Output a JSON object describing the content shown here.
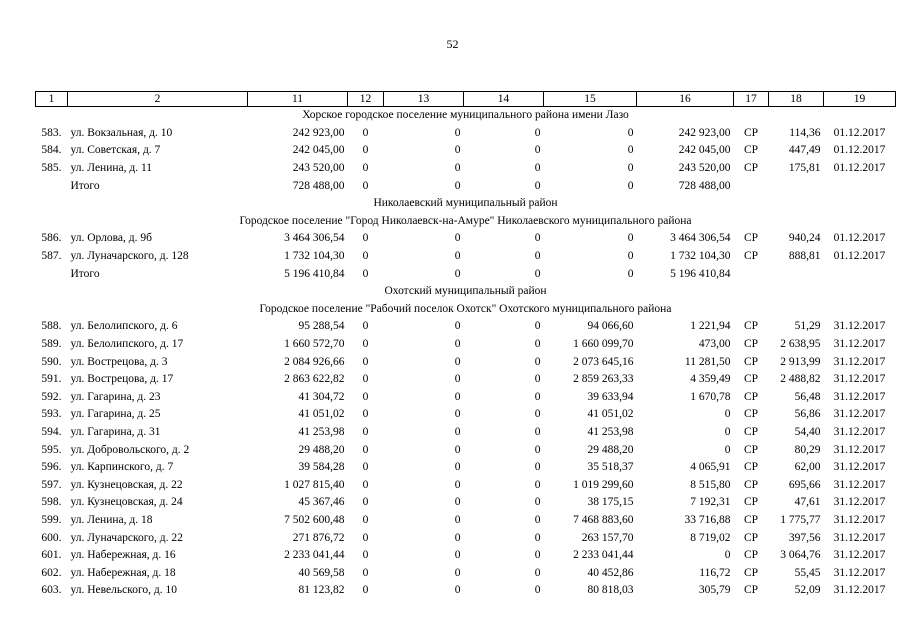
{
  "page_number": "52",
  "header": [
    "1",
    "2",
    "11",
    "12",
    "13",
    "14",
    "15",
    "16",
    "17",
    "18",
    "19"
  ],
  "rows": [
    {
      "kind": "section",
      "text": "Хорское городское поселение муниципального района имени Лазо"
    },
    {
      "kind": "data",
      "cells": [
        "583.",
        "ул. Вокзальная, д. 10",
        "242 923,00",
        "0",
        "0",
        "0",
        "0",
        "242 923,00",
        "СР",
        "114,36",
        "01.12.2017"
      ]
    },
    {
      "kind": "data",
      "cells": [
        "584.",
        "ул. Советская, д. 7",
        "242 045,00",
        "0",
        "0",
        "0",
        "0",
        "242 045,00",
        "СР",
        "447,49",
        "01.12.2017"
      ]
    },
    {
      "kind": "data",
      "cells": [
        "585.",
        "ул. Ленина, д. 11",
        "243 520,00",
        "0",
        "0",
        "0",
        "0",
        "243 520,00",
        "СР",
        "175,81",
        "01.12.2017"
      ]
    },
    {
      "kind": "data",
      "cells": [
        "",
        "Итого",
        "728 488,00",
        "0",
        "0",
        "0",
        "0",
        "728 488,00",
        "",
        "",
        ""
      ]
    },
    {
      "kind": "section",
      "text": "Николаевский муниципальный район"
    },
    {
      "kind": "section",
      "text": "Городское поселение \"Город Николаевск-на-Амуре\" Николаевского муниципального района"
    },
    {
      "kind": "data",
      "cells": [
        "586.",
        "ул. Орлова, д. 9б",
        "3 464 306,54",
        "0",
        "0",
        "0",
        "0",
        "3 464 306,54",
        "СР",
        "940,24",
        "01.12.2017"
      ]
    },
    {
      "kind": "data",
      "cells": [
        "587.",
        "ул. Луначарского, д. 128",
        "1 732 104,30",
        "0",
        "0",
        "0",
        "0",
        "1 732 104,30",
        "СР",
        "888,81",
        "01.12.2017"
      ]
    },
    {
      "kind": "data",
      "cells": [
        "",
        "Итого",
        "5 196 410,84",
        "0",
        "0",
        "0",
        "0",
        "5 196 410,84",
        "",
        "",
        ""
      ]
    },
    {
      "kind": "section",
      "text": "Охотский муниципальный район"
    },
    {
      "kind": "section",
      "text": "Городское поселение \"Рабочий поселок Охотск\" Охотского муниципального района"
    },
    {
      "kind": "data",
      "cells": [
        "588.",
        "ул. Белолипского, д. 6",
        "95 288,54",
        "0",
        "0",
        "0",
        "94 066,60",
        "1 221,94",
        "СР",
        "51,29",
        "31.12.2017"
      ]
    },
    {
      "kind": "data",
      "cells": [
        "589.",
        "ул. Белолипского, д. 17",
        "1 660 572,70",
        "0",
        "0",
        "0",
        "1 660 099,70",
        "473,00",
        "СР",
        "2 638,95",
        "31.12.2017"
      ]
    },
    {
      "kind": "data",
      "cells": [
        "590.",
        "ул. Вострецова, д. 3",
        "2 084 926,66",
        "0",
        "0",
        "0",
        "2 073 645,16",
        "11 281,50",
        "СР",
        "2 913,99",
        "31.12.2017"
      ]
    },
    {
      "kind": "data",
      "cells": [
        "591.",
        "ул. Вострецова, д. 17",
        "2 863 622,82",
        "0",
        "0",
        "0",
        "2 859 263,33",
        "4 359,49",
        "СР",
        "2 488,82",
        "31.12.2017"
      ]
    },
    {
      "kind": "data",
      "cells": [
        "592.",
        "ул. Гагарина, д. 23",
        "41 304,72",
        "0",
        "0",
        "0",
        "39 633,94",
        "1 670,78",
        "СР",
        "56,48",
        "31.12.2017"
      ]
    },
    {
      "kind": "data",
      "cells": [
        "593.",
        "ул. Гагарина, д. 25",
        "41 051,02",
        "0",
        "0",
        "0",
        "41 051,02",
        "0",
        "СР",
        "56,86",
        "31.12.2017"
      ]
    },
    {
      "kind": "data",
      "cells": [
        "594.",
        "ул. Гагарина, д. 31",
        "41 253,98",
        "0",
        "0",
        "0",
        "41 253,98",
        "0",
        "СР",
        "54,40",
        "31.12.2017"
      ]
    },
    {
      "kind": "data",
      "cells": [
        "595.",
        "ул. Добровольского, д. 2",
        "29 488,20",
        "0",
        "0",
        "0",
        "29 488,20",
        "0",
        "СР",
        "80,29",
        "31.12.2017"
      ]
    },
    {
      "kind": "data",
      "cells": [
        "596.",
        "ул. Карпинского, д. 7",
        "39 584,28",
        "0",
        "0",
        "0",
        "35 518,37",
        "4 065,91",
        "СР",
        "62,00",
        "31.12.2017"
      ]
    },
    {
      "kind": "data",
      "cells": [
        "597.",
        "ул. Кузнецовская, д. 22",
        "1 027 815,40",
        "0",
        "0",
        "0",
        "1 019 299,60",
        "8 515,80",
        "СР",
        "695,66",
        "31.12.2017"
      ]
    },
    {
      "kind": "data",
      "cells": [
        "598.",
        "ул. Кузнецовская, д. 24",
        "45 367,46",
        "0",
        "0",
        "0",
        "38 175,15",
        "7 192,31",
        "СР",
        "47,61",
        "31.12.2017"
      ]
    },
    {
      "kind": "data",
      "cells": [
        "599.",
        "ул. Ленина, д. 18",
        "7 502 600,48",
        "0",
        "0",
        "0",
        "7 468 883,60",
        "33 716,88",
        "СР",
        "1 775,77",
        "31.12.2017"
      ]
    },
    {
      "kind": "data",
      "cells": [
        "600.",
        "ул. Луначарского, д. 22",
        "271 876,72",
        "0",
        "0",
        "0",
        "263 157,70",
        "8 719,02",
        "СР",
        "397,56",
        "31.12.2017"
      ]
    },
    {
      "kind": "data",
      "cells": [
        "601.",
        "ул. Набережная, д. 16",
        "2 233 041,44",
        "0",
        "0",
        "0",
        "2 233 041,44",
        "0",
        "СР",
        "3 064,76",
        "31.12.2017"
      ]
    },
    {
      "kind": "data",
      "cells": [
        "602.",
        "ул. Набережная, д. 18",
        "40 569,58",
        "0",
        "0",
        "0",
        "40 452,86",
        "116,72",
        "СР",
        "55,45",
        "31.12.2017"
      ]
    },
    {
      "kind": "data",
      "cells": [
        "603.",
        "ул. Невельского, д. 10",
        "81 123,82",
        "0",
        "0",
        "0",
        "80 818,03",
        "305,79",
        "СР",
        "52,09",
        "31.12.2017"
      ]
    }
  ]
}
